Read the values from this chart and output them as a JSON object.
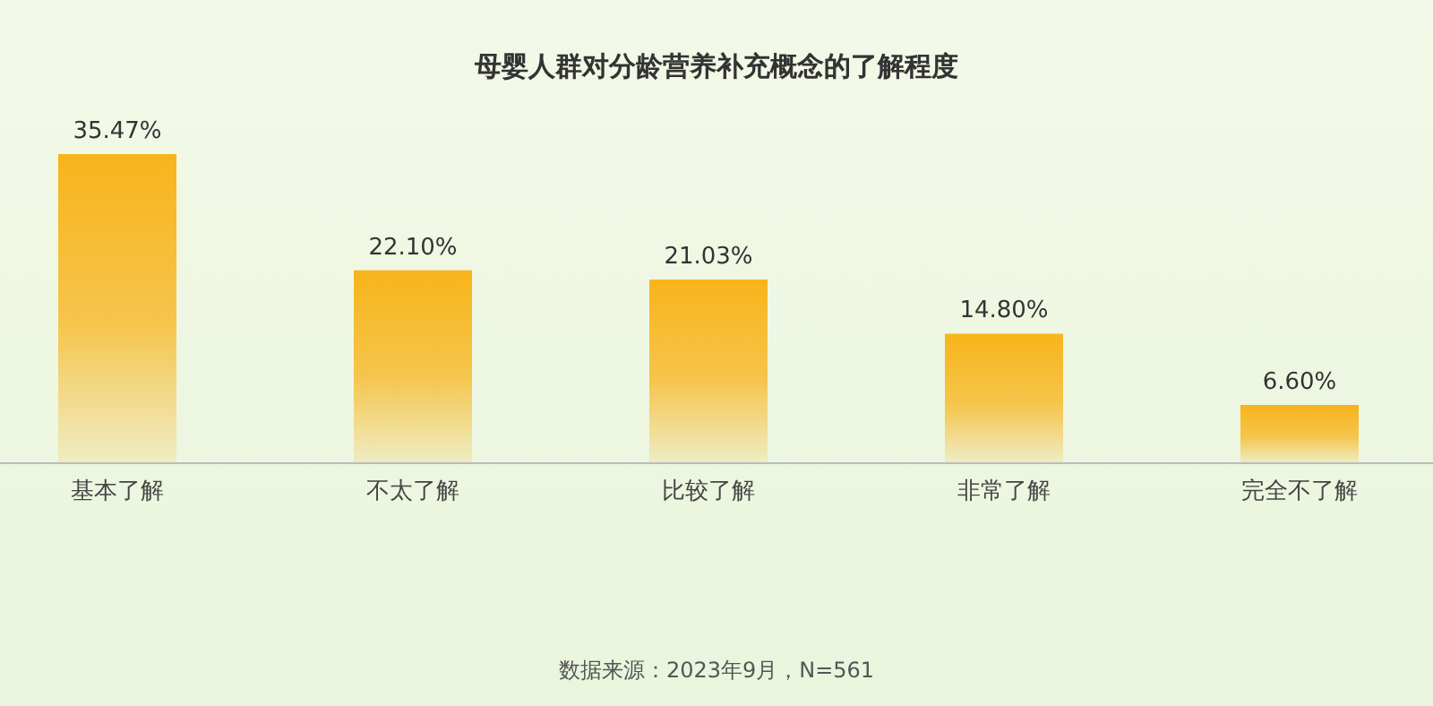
{
  "chart_data": {
    "type": "bar",
    "title": "母婴人群对分龄营养补充概念的了解程度",
    "categories": [
      "基本了解",
      "不太了解",
      "比较了解",
      "非常了解",
      "完全不了解"
    ],
    "values": [
      35.47,
      22.1,
      21.03,
      14.8,
      6.6
    ],
    "value_labels": [
      "35.47%",
      "22.10%",
      "21.03%",
      "14.80%",
      "6.60%"
    ],
    "color": "#f8b41a",
    "annotations": [
      "数据来源：2023年9月，N=561"
    ]
  }
}
